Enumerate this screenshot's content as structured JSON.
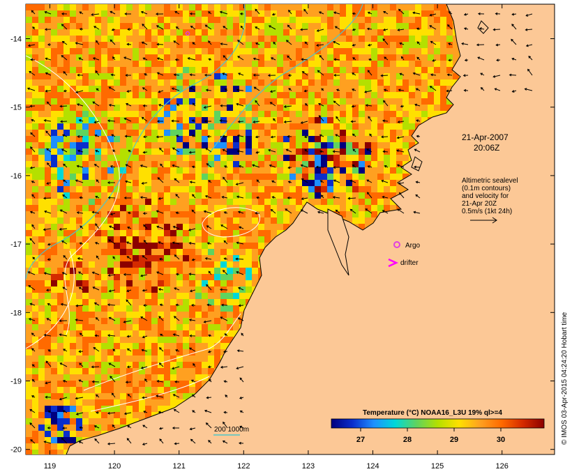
{
  "map": {
    "date": "21-Apr-2007",
    "time": "20:06Z",
    "x_ticks": [
      "119",
      "120",
      "121",
      "122",
      "123",
      "124",
      "125",
      "126"
    ],
    "y_ticks": [
      "-14",
      "-15",
      "-16",
      "-17",
      "-18",
      "-19",
      "-20"
    ],
    "legend_lines": [
      "Altimetric sealevel",
      "(0.1m contours)",
      "and velocity for",
      "21-Apr 20Z",
      "0.5m/s (1kt 24h)"
    ],
    "argo_label": "Argo",
    "drifter_label": "drifter",
    "isobath_label": "200  1000m",
    "credit": "© IMOS 03-Apr-2015 04:24:20 Hobart time",
    "colors": {
      "land": "#fcc896",
      "isobath_200": "#4cc6c8",
      "argo": "#e040e0",
      "drifter": "#ff00ff"
    }
  },
  "colorbar": {
    "title": "Temperature (°C) NOAA16_L3U 19% ql>=4",
    "ticks": [
      "27",
      "28",
      "29",
      "30"
    ],
    "colors": [
      "#00007f",
      "#0a2ecc",
      "#1e90ff",
      "#00d8d8",
      "#5fd35f",
      "#b4e000",
      "#ffe000",
      "#ffa020",
      "#ff6a00",
      "#d42a00",
      "#8c0000"
    ]
  }
}
